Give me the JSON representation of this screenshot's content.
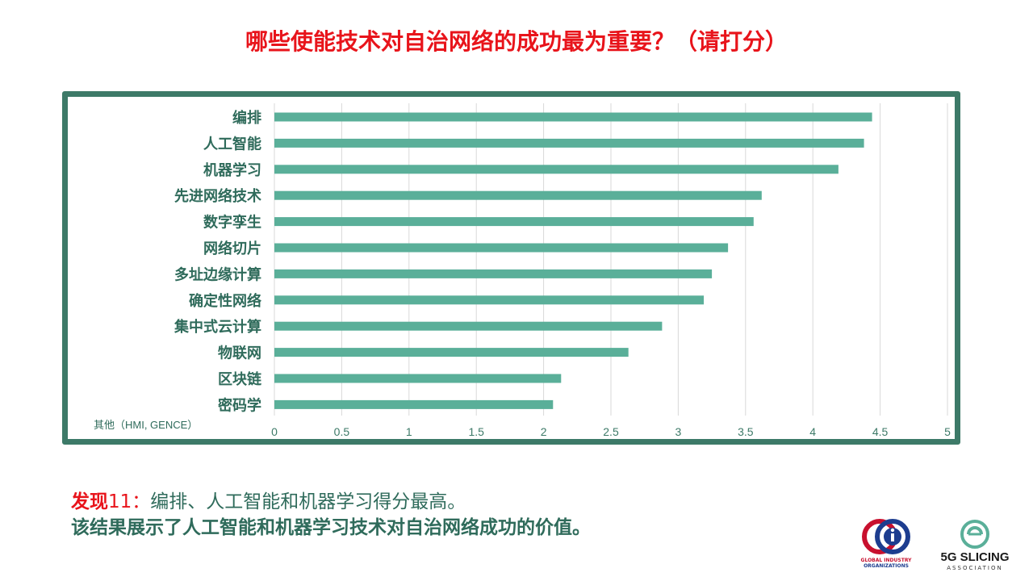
{
  "title": "哪些使能技术对自治网络的成功最为重要？（请打分）",
  "chart_data": {
    "type": "bar",
    "orientation": "horizontal",
    "categories": [
      "编排",
      "人工智能",
      "机器学习",
      "先进网络技术",
      "数字孪生",
      "网络切片",
      "多址边缘计算",
      "确定性网络",
      "集中式云计算",
      "物联网",
      "区块链",
      "密码学"
    ],
    "values": [
      4.44,
      4.38,
      4.19,
      3.62,
      3.56,
      3.37,
      3.25,
      3.19,
      2.88,
      2.63,
      2.13,
      2.07
    ],
    "xlim": [
      0,
      5
    ],
    "xticks": [
      "0",
      "0.5",
      "1",
      "1.5",
      "2",
      "2.5",
      "3",
      "3.5",
      "4",
      "4.5",
      "5"
    ],
    "bar_color": "#5aaf99",
    "grid": true,
    "note": "其他（HMI, GENCE）"
  },
  "finding": {
    "label": "发现",
    "number": "11：",
    "text1": "编排、人工智能和机器学习得分最高。",
    "line2": "该结果展示了人工智能和机器学习技术对自治网络成功的价值。"
  },
  "logos": {
    "gio_line1": "GLOBAL INDUSTRY",
    "gio_line2": "ORGANIZATIONS",
    "slicing_name": "5G SLICING",
    "slicing_sub": "ASSOCIATION"
  }
}
